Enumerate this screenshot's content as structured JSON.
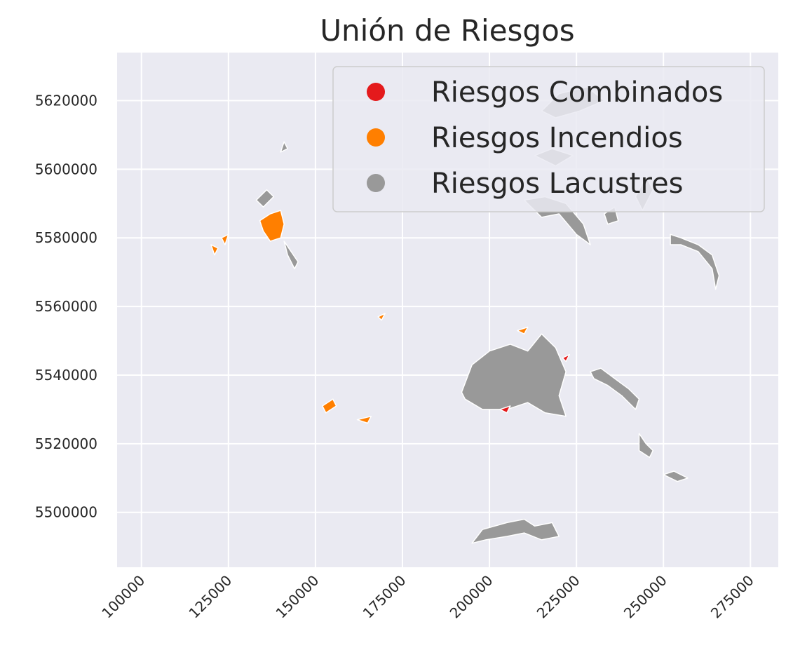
{
  "chart_data": {
    "type": "map",
    "title": "Unión de Riesgos",
    "grid": true,
    "legend_position": "top-right",
    "x_axis": {
      "range": [
        93000,
        283000
      ],
      "ticks": [
        100000,
        125000,
        150000,
        175000,
        200000,
        225000,
        250000,
        275000
      ],
      "tick_labels": [
        "100000",
        "125000",
        "150000",
        "175000",
        "200000",
        "225000",
        "250000",
        "275000"
      ]
    },
    "y_axis": {
      "range": [
        5484000,
        5634000
      ],
      "ticks": [
        5500000,
        5520000,
        5540000,
        5560000,
        5580000,
        5600000,
        5620000
      ],
      "tick_labels": [
        "5500000",
        "5520000",
        "5540000",
        "5560000",
        "5580000",
        "5600000",
        "5620000"
      ]
    },
    "series": [
      {
        "name": "Riesgos Combinados",
        "color": "#e41a1c"
      },
      {
        "name": "Riesgos Incendios",
        "color": "#ff7f00"
      },
      {
        "name": "Riesgos Lacustres",
        "color": "#999999"
      }
    ],
    "regions": [
      {
        "series": 2,
        "pts": [
          [
            192000,
            5535000
          ],
          [
            195000,
            5543000
          ],
          [
            200000,
            5547000
          ],
          [
            206000,
            5549000
          ],
          [
            211000,
            5547000
          ],
          [
            215000,
            5552000
          ],
          [
            219000,
            5548000
          ],
          [
            222000,
            5541000
          ],
          [
            220000,
            5534000
          ],
          [
            222000,
            5528000
          ],
          [
            216000,
            5529000
          ],
          [
            211000,
            5532000
          ],
          [
            205000,
            5530000
          ],
          [
            198000,
            5530000
          ],
          [
            193000,
            5533000
          ]
        ]
      },
      {
        "series": 2,
        "pts": [
          [
            195000,
            5491000
          ],
          [
            198000,
            5495000
          ],
          [
            205000,
            5497000
          ],
          [
            210000,
            5498000
          ],
          [
            213000,
            5496000
          ],
          [
            218000,
            5497000
          ],
          [
            220000,
            5493000
          ],
          [
            215000,
            5492000
          ],
          [
            210000,
            5494000
          ],
          [
            205000,
            5493000
          ],
          [
            199000,
            5492000
          ]
        ]
      },
      {
        "series": 2,
        "pts": [
          [
            210000,
            5591000
          ],
          [
            215000,
            5586000
          ],
          [
            220000,
            5587000
          ],
          [
            225000,
            5581000
          ],
          [
            229000,
            5578000
          ],
          [
            227000,
            5584000
          ],
          [
            222000,
            5590000
          ],
          [
            216000,
            5592000
          ]
        ]
      },
      {
        "series": 2,
        "pts": [
          [
            252000,
            5581000
          ],
          [
            255000,
            5580000
          ],
          [
            260000,
            5578000
          ],
          [
            264000,
            5575000
          ],
          [
            266000,
            5569000
          ],
          [
            265000,
            5565000
          ],
          [
            264000,
            5571000
          ],
          [
            260000,
            5576000
          ],
          [
            255000,
            5578000
          ],
          [
            252000,
            5578000
          ]
        ]
      },
      {
        "series": 2,
        "pts": [
          [
            229000,
            5541000
          ],
          [
            232000,
            5542000
          ],
          [
            236000,
            5539000
          ],
          [
            240000,
            5536000
          ],
          [
            243000,
            5533000
          ],
          [
            242000,
            5530000
          ],
          [
            238000,
            5534000
          ],
          [
            234000,
            5537000
          ],
          [
            230000,
            5539000
          ]
        ]
      },
      {
        "series": 2,
        "pts": [
          [
            243000,
            5523000
          ],
          [
            245000,
            5520000
          ],
          [
            247000,
            5518000
          ],
          [
            246000,
            5516000
          ],
          [
            243000,
            5518000
          ]
        ]
      },
      {
        "series": 2,
        "pts": [
          [
            250000,
            5511000
          ],
          [
            254000,
            5509000
          ],
          [
            257000,
            5510000
          ],
          [
            253000,
            5512000
          ]
        ]
      },
      {
        "series": 2,
        "pts": [
          [
            141000,
            5579000
          ],
          [
            143000,
            5576000
          ],
          [
            145000,
            5573000
          ],
          [
            144000,
            5571000
          ],
          [
            142000,
            5575000
          ]
        ]
      },
      {
        "series": 2,
        "pts": [
          [
            133000,
            5591000
          ],
          [
            136000,
            5594000
          ],
          [
            138000,
            5592000
          ],
          [
            135000,
            5589000
          ]
        ]
      },
      {
        "series": 2,
        "pts": [
          [
            215000,
            5617000
          ],
          [
            220000,
            5622000
          ],
          [
            228000,
            5624000
          ],
          [
            233000,
            5620000
          ],
          [
            226000,
            5617000
          ],
          [
            219000,
            5615000
          ]
        ]
      },
      {
        "series": 2,
        "pts": [
          [
            213000,
            5604000
          ],
          [
            218000,
            5606000
          ],
          [
            224000,
            5604000
          ],
          [
            219000,
            5601000
          ]
        ]
      },
      {
        "series": 2,
        "pts": [
          [
            242000,
            5592000
          ],
          [
            245000,
            5598000
          ],
          [
            247000,
            5594000
          ],
          [
            244000,
            5588000
          ]
        ]
      },
      {
        "series": 2,
        "pts": [
          [
            233000,
            5587000
          ],
          [
            236000,
            5589000
          ],
          [
            237000,
            5585000
          ],
          [
            234000,
            5584000
          ]
        ]
      },
      {
        "series": 2,
        "pts": [
          [
            140000,
            5605000
          ],
          [
            141000,
            5608000
          ],
          [
            142000,
            5606000
          ]
        ]
      },
      {
        "series": 1,
        "pts": [
          [
            134000,
            5585000
          ],
          [
            137000,
            5587000
          ],
          [
            140000,
            5588000
          ],
          [
            141000,
            5584000
          ],
          [
            140000,
            5580000
          ],
          [
            137000,
            5579000
          ],
          [
            135000,
            5582000
          ]
        ]
      },
      {
        "series": 1,
        "pts": [
          [
            120000,
            5578000
          ],
          [
            122000,
            5577000
          ],
          [
            121000,
            5575000
          ]
        ]
      },
      {
        "series": 1,
        "pts": [
          [
            123000,
            5580000
          ],
          [
            125000,
            5581000
          ],
          [
            124000,
            5578000
          ]
        ]
      },
      {
        "series": 1,
        "pts": [
          [
            152000,
            5531000
          ],
          [
            155000,
            5533000
          ],
          [
            156000,
            5531000
          ],
          [
            153000,
            5529000
          ]
        ]
      },
      {
        "series": 1,
        "pts": [
          [
            162000,
            5527000
          ],
          [
            166000,
            5528000
          ],
          [
            165000,
            5526000
          ]
        ]
      },
      {
        "series": 1,
        "pts": [
          [
            168000,
            5557000
          ],
          [
            170000,
            5558000
          ],
          [
            169000,
            5556000
          ]
        ]
      },
      {
        "series": 1,
        "pts": [
          [
            208000,
            5553000
          ],
          [
            211000,
            5554000
          ],
          [
            210000,
            5552000
          ]
        ]
      },
      {
        "series": 0,
        "pts": [
          [
            221000,
            5545000
          ],
          [
            223000,
            5546000
          ],
          [
            222000,
            5544000
          ]
        ]
      },
      {
        "series": 0,
        "pts": [
          [
            203000,
            5530000
          ],
          [
            206000,
            5531000
          ],
          [
            205000,
            5529000
          ]
        ]
      }
    ]
  }
}
